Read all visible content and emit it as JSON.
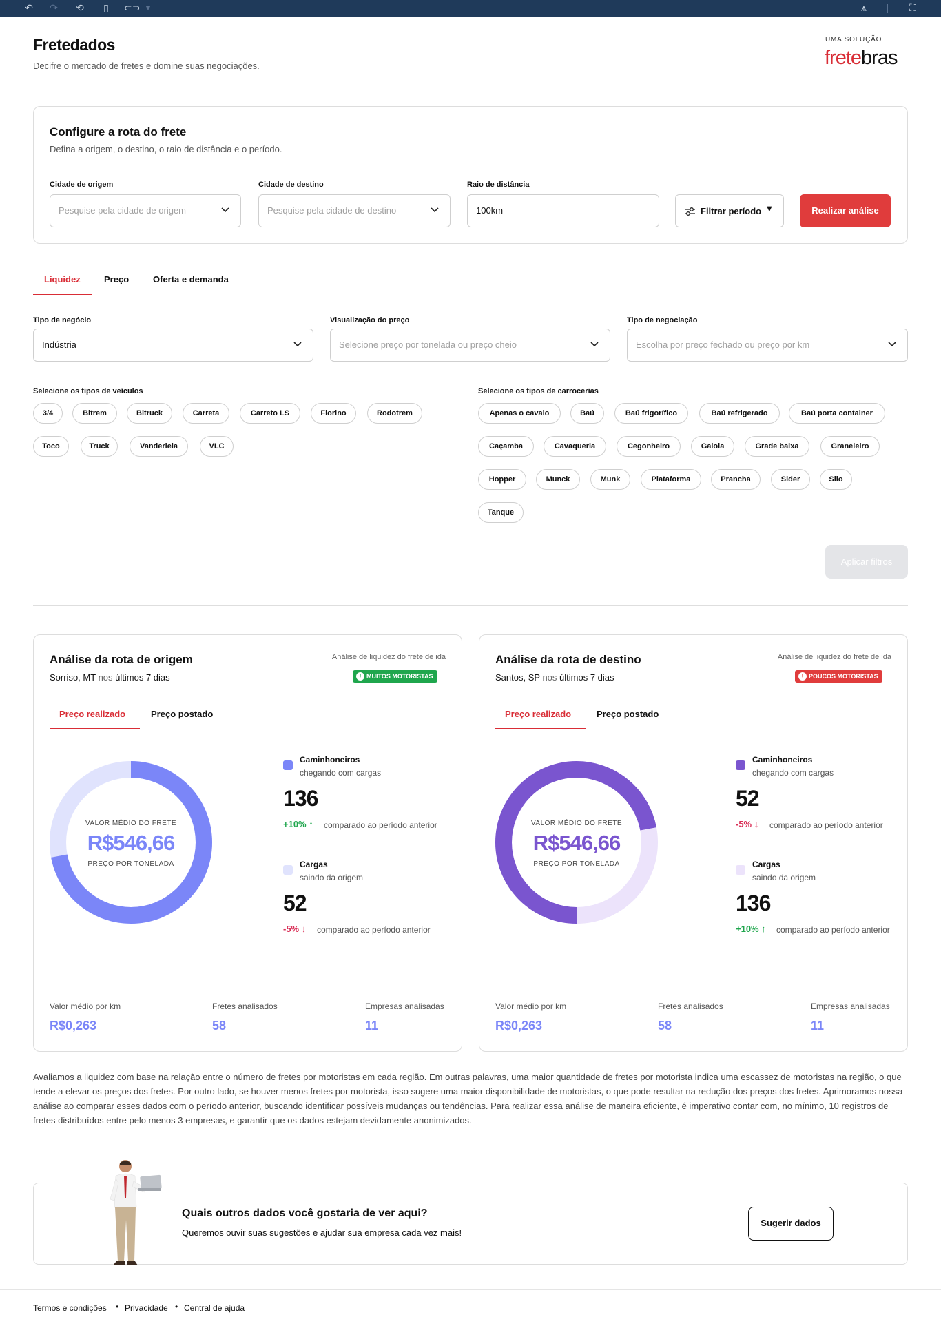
{
  "toolbar": {
    "icons": [
      "undo-icon",
      "redo-icon",
      "refresh-icon",
      "clipboard-icon",
      "link-icon",
      "dropdown-caret-icon",
      "library-icon",
      "fullscreen-icon"
    ]
  },
  "header": {
    "title": "Fretedados",
    "subtitle": "Decifre o mercado de fretes e domine suas negociações.",
    "brand_pre": "UMA SOLUÇÃO",
    "brand_part1": "frete",
    "brand_part2": "bras"
  },
  "route": {
    "title": "Configure a rota do frete",
    "subtitle": "Defina a origem, o destino, o raio de distância e o período.",
    "origin_label": "Cidade de origem",
    "origin_placeholder": "Pesquise pela cidade de origem",
    "destination_label": "Cidade de destino",
    "destination_placeholder": "Pesquise pela cidade de destino",
    "radius_label": "Raio de distância",
    "radius_value": "100km",
    "period_button": "Filtrar período",
    "analyze_button": "Realizar análise"
  },
  "tabs": [
    "Liquidez",
    "Preço",
    "Oferta e demanda"
  ],
  "filters": {
    "business_label": "Tipo de negócio",
    "business_value": "Indústria",
    "price_view_label": "Visualização do preço",
    "price_view_placeholder": "Selecione preço por tonelada ou preço cheio",
    "negotiation_label": "Tipo de negociação",
    "negotiation_placeholder": "Escolha por preço fechado ou preço por km",
    "vehicles_label": "Selecione os tipos de veículos",
    "vehicles": [
      "3/4",
      "Bitrem",
      "Bitruck",
      "Carreta",
      "Carreto LS",
      "Fiorino",
      "Rodotrem",
      "Toco",
      "Truck",
      "Vanderleia",
      "VLC"
    ],
    "bodies_label": "Selecione os tipos de carrocerias",
    "bodies": [
      "Apenas o cavalo",
      "Baú",
      "Baú frigorífico",
      "Baú refrigerado",
      "Baú porta container",
      "Caçamba",
      "Cavaqueria",
      "Cegonheiro",
      "Gaiola",
      "Grade baixa",
      "Graneleiro",
      "Hopper",
      "Munck",
      "Munk",
      "Plataforma",
      "Prancha",
      "Sider",
      "Silo",
      "Tanque"
    ],
    "apply_button": "Aplicar filtros"
  },
  "origin_card": {
    "title": "Análise da rota de origem",
    "city": "Sorriso, MT",
    "period_word": "nos",
    "period": "últimos 7 dias",
    "tag": "Análise de liquidez do frete de ida",
    "badge": "MUITOS MOTORISTAS",
    "badge_color": "#1fa64d",
    "tab_active": "Preço realizado",
    "tab_other": "Preço postado",
    "donut_share": 0.72,
    "donut_color": "#7b86f8",
    "donut_track": "#e0e3fd",
    "donut_caption_top": "VALOR MÉDIO DO FRETE",
    "donut_value": "R$546,66",
    "donut_caption_bottom": "PREÇO POR TONELADA",
    "item1_title": "Caminhoneiros",
    "item1_sub": "chegando com cargas",
    "item1_value": "136",
    "item1_delta": "+10%",
    "item1_arrow": "↑",
    "item2_title": "Cargas",
    "item2_sub": "saindo da origem",
    "item2_value": "52",
    "item2_delta": "-5%",
    "item2_arrow": "↓",
    "compare_text": "comparado ao período anterior",
    "stat1_label": "Valor médio por km",
    "stat1_value": "R$0,263",
    "stat2_label": "Fretes analisados",
    "stat2_value": "58",
    "stat3_label": "Empresas analisadas",
    "stat3_value": "11"
  },
  "dest_card": {
    "title": "Análise da rota de destino",
    "city": "Santos, SP",
    "period_word": "nos",
    "period": "últimos 7 dias",
    "tag": "Análise de liquidez do frete de ida",
    "badge": "POUCOS MOTORISTAS",
    "badge_color": "#e03c3c",
    "tab_active": "Preço realizado",
    "tab_other": "Preço postado",
    "donut_share": 0.72,
    "donut_color": "#7a55cf",
    "donut_track": "#ece3fb",
    "donut_caption_top": "VALOR MÉDIO DO FRETE",
    "donut_value": "R$546,66",
    "donut_caption_bottom": "PREÇO POR TONELADA",
    "item1_title": "Caminhoneiros",
    "item1_sub": "chegando com cargas",
    "item1_value": "52",
    "item1_delta": "-5%",
    "item1_arrow": "↓",
    "item2_title": "Cargas",
    "item2_sub": "saindo da origem",
    "item2_value": "136",
    "item2_delta": "+10%",
    "item2_arrow": "↑",
    "compare_text": "comparado ao período anterior",
    "stat1_label": "Valor médio por km",
    "stat1_value": "R$0,263",
    "stat2_label": "Fretes analisados",
    "stat2_value": "58",
    "stat3_label": "Empresas analisadas",
    "stat3_value": "11"
  },
  "explanation": "Avaliamos a liquidez com base na relação entre o número de fretes por motoristas em cada região. Em outras palavras, uma maior quantidade de fretes por motorista indica uma escassez de motoristas na região, o que tende a elevar os preços dos fretes. Por outro lado, se houver menos fretes por motorista, isso sugere uma maior disponibilidade de motoristas, o que pode resultar na redução dos preços dos fretes. Aprimoramos nossa análise ao comparar esses dados com o período anterior, buscando identificar possíveis mudanças ou tendências. Para realizar essa análise de maneira eficiente, é imperativo contar com, no mínimo, 10 registros de fretes distribuídos entre pelo menos 3 empresas, e garantir que os dados estejam devidamente anonimizados.",
  "cta": {
    "title": "Quais outros dados você gostaria de ver aqui?",
    "subtitle": "Queremos ouvir suas sugestões e ajudar sua empresa cada vez mais!",
    "button": "Sugerir dados"
  },
  "footer": {
    "links": [
      "Termos e condições",
      "Privacidade",
      "Central de ajuda"
    ],
    "separator": "•"
  }
}
